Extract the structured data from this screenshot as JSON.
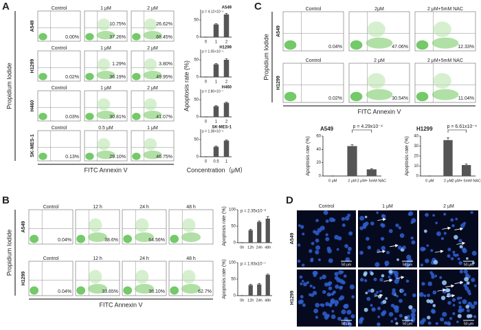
{
  "panel_a": {
    "letter": "A",
    "y_label": "Propidium Iodide",
    "x_label": "FITC Annexin V",
    "bar_y_label": "Apoptosis rate (%)",
    "bar_x_label": "Concentration（μM）",
    "rows": [
      {
        "cell_line": "A549",
        "headers": [
          "Control",
          "1 μM",
          "2 μM"
        ],
        "plots": [
          {
            "lower": "0.00%"
          },
          {
            "upper": "10.75%",
            "lower": "37.26%"
          },
          {
            "upper": "26.62%",
            "lower": "68.45%"
          }
        ]
      },
      {
        "cell_line": "H1299",
        "headers": [
          "Control",
          "1 μM",
          "2 μM"
        ],
        "plots": [
          {
            "lower": "0.02%"
          },
          {
            "upper": "1.29%",
            "lower": "36.19%"
          },
          {
            "upper": "3.80%",
            "lower": "49.95%"
          }
        ]
      },
      {
        "cell_line": "H460",
        "headers": [
          "Control",
          "1 μM",
          "2 μM"
        ],
        "plots": [
          {
            "lower": "0.03%"
          },
          {
            "lower": "30.81%"
          },
          {
            "lower": "41.07%"
          }
        ]
      },
      {
        "cell_line": "SK-MES-1",
        "headers": [
          "Control",
          "0.5 μM",
          "1 μM"
        ],
        "plots": [
          {
            "lower": "0.13%"
          },
          {
            "lower": "29.10%"
          },
          {
            "lower": "46.75%"
          }
        ]
      }
    ]
  },
  "panel_b": {
    "letter": "B",
    "y_label": "Propidium Iodide",
    "x_label": "FITC Annexin V",
    "rows": [
      {
        "cell_line": "A549",
        "headers": [
          "Control",
          "12 h",
          "24 h",
          "48 h"
        ],
        "plots": [
          {
            "lower": "0.04%"
          },
          {
            "lower": "38.6%"
          },
          {
            "lower": "64.56%"
          },
          {}
        ]
      },
      {
        "cell_line": "H1299",
        "headers": [
          "Control",
          "12 h",
          "24 h",
          "48 h"
        ],
        "plots": [
          {
            "lower": "0.04%"
          },
          {
            "lower": "33.65%"
          },
          {
            "lower": "38.10%"
          },
          {
            "lower": "62.7%"
          }
        ]
      }
    ]
  },
  "panel_c": {
    "letter": "C",
    "y_label": "Propidium Iodide",
    "x_label": "FITC Annexin V",
    "rows": [
      {
        "cell_line": "A549",
        "headers": [
          "Control",
          "2μM",
          "2 μM+5mM NAC"
        ],
        "plots": [
          {
            "lower": "0.04%"
          },
          {
            "lower": "47.06%"
          },
          {
            "lower": "12.33%"
          }
        ]
      },
      {
        "cell_line": "H1299",
        "headers": [
          "Control",
          "2 μM",
          "2 μM+5mM NAC"
        ],
        "plots": [
          {
            "lower": "0.02%"
          },
          {
            "lower": "30.54%"
          },
          {
            "lower": "11.04%"
          }
        ]
      }
    ]
  },
  "panel_d": {
    "letter": "D",
    "headers": [
      "Control",
      "1 μM",
      "2 μM"
    ],
    "rows": [
      {
        "cell_line": "A549",
        "scale_bars": [
          "50 μm",
          "50 μm",
          "50 μm"
        ]
      },
      {
        "cell_line": "H1299",
        "scale_bars": [
          "50 μm",
          "50 μm",
          "50 μm"
        ]
      }
    ]
  },
  "chart_data": [
    {
      "type": "bar",
      "title": "A549",
      "annotation": "p = 4.12×10⁻⁶",
      "categories": [
        "0",
        "1",
        "2"
      ],
      "values": [
        0,
        37,
        66
      ],
      "errors": [
        0,
        2,
        3
      ],
      "color": "#555555",
      "ylim": [
        0,
        80
      ],
      "yticks": [
        0,
        50
      ]
    },
    {
      "type": "bar",
      "title": "H1299",
      "annotation": "p = 1.05×10⁻⁵",
      "categories": [
        "0",
        "1",
        "2"
      ],
      "values": [
        0,
        37,
        50
      ],
      "errors": [
        0,
        2,
        3
      ],
      "color": "#555555",
      "ylim": [
        0,
        80
      ],
      "yticks": [
        0,
        50
      ]
    },
    {
      "type": "bar",
      "title": "H460",
      "annotation": "p = 2.80×10⁻⁷",
      "categories": [
        "0",
        "1",
        "2"
      ],
      "values": [
        0,
        31,
        41
      ],
      "errors": [
        0,
        1.5,
        1.5
      ],
      "color": "#555555",
      "ylim": [
        0,
        80
      ],
      "yticks": [
        0,
        50
      ]
    },
    {
      "type": "bar",
      "title": "SK-MES-1",
      "annotation": "p = 1.38×10⁻⁶",
      "categories": [
        "0",
        "0.5",
        "1"
      ],
      "values": [
        0,
        29,
        47
      ],
      "errors": [
        0,
        2,
        1.5
      ],
      "color": "#555555",
      "ylim": [
        0,
        80
      ],
      "yticks": [
        0,
        50
      ]
    },
    {
      "type": "bar",
      "y_label": "Apoptosis rate (%)",
      "annotation": "p = 2.35x10⁻⁶",
      "categories": [
        "0h",
        "12h",
        "24h",
        "48h"
      ],
      "values": [
        0,
        38,
        63,
        73
      ],
      "errors": [
        0,
        3,
        3,
        6
      ],
      "color": "#555555",
      "ylim": [
        0,
        100
      ],
      "yticks": [
        0,
        50,
        100
      ]
    },
    {
      "type": "bar",
      "y_label": "Apoptosis rate (%)",
      "annotation": "p = 1.93x10⁻⁷",
      "categories": [
        "0h",
        "12h",
        "24h",
        "48h"
      ],
      "values": [
        0,
        32,
        34,
        63
      ],
      "errors": [
        0,
        2,
        3,
        2
      ],
      "color": "#555555",
      "ylim": [
        0,
        100
      ],
      "yticks": [
        0,
        50,
        100
      ]
    },
    {
      "type": "bar",
      "title": "A549",
      "y_label": "Apoptosis rate (%)",
      "annotation": "p = 4.29x10⁻⁴",
      "categories": [
        "0 μM",
        "2 μM",
        "2 μM+ 5mM NAC"
      ],
      "values": [
        0,
        45,
        10
      ],
      "errors": [
        0,
        2,
        1
      ],
      "color": "#555555",
      "ylim": [
        0,
        60
      ],
      "yticks": [
        0,
        20,
        40,
        60
      ]
    },
    {
      "type": "bar",
      "title": "H1299",
      "y_label": "Apoptosis rate (%)",
      "annotation": "p = 6.61x10⁻⁴",
      "categories": [
        "0 μM",
        "2 μM",
        "2 μM+ 5mM NAC"
      ],
      "values": [
        0,
        36,
        11
      ],
      "errors": [
        0,
        2.5,
        1
      ],
      "color": "#555555",
      "ylim": [
        0,
        40
      ],
      "yticks": [
        0,
        10,
        20,
        30,
        40
      ]
    }
  ]
}
